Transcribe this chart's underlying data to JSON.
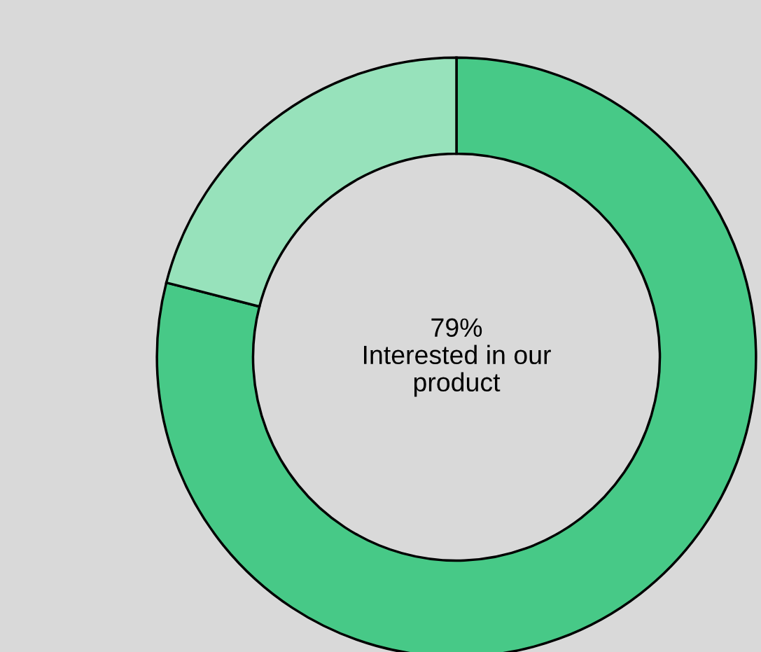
{
  "chart_data": {
    "type": "donut",
    "categories": [
      null,
      null
    ],
    "values": [
      79,
      21
    ],
    "colors": [
      "#47c987",
      "#97e2bb"
    ],
    "annotations": [
      "79%\nInterested in our\nproduct"
    ]
  }
}
